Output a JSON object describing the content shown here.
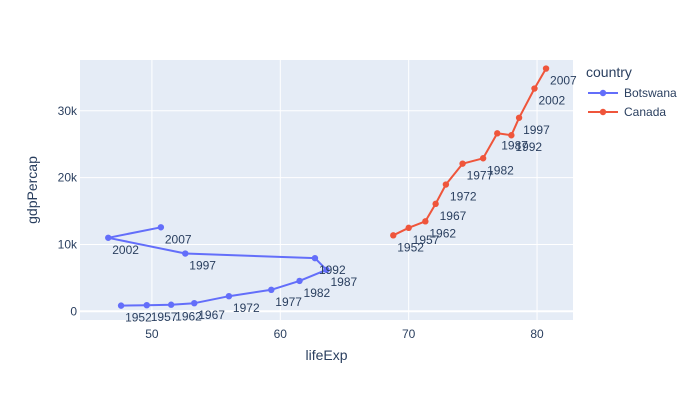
{
  "chart_data": {
    "type": "line",
    "title": "",
    "xlabel": "lifeExp",
    "ylabel": "gdpPercap",
    "xlim": [
      44.4,
      82.8
    ],
    "ylim": [
      -1300,
      37600
    ],
    "xticks": [
      50,
      60,
      70,
      80
    ],
    "yticks": [
      0,
      10000,
      20000,
      30000
    ],
    "ytick_labels": [
      "0",
      "10k",
      "20k",
      "30k"
    ],
    "grid": true,
    "legend": {
      "title": "country",
      "placement": "top-right"
    },
    "series": [
      {
        "name": "Botswana",
        "color": "#636efa",
        "points": [
          {
            "x": 47.6,
            "y": 851,
            "label": "1952"
          },
          {
            "x": 49.6,
            "y": 918,
            "label": "1957"
          },
          {
            "x": 51.5,
            "y": 984,
            "label": "1962"
          },
          {
            "x": 53.3,
            "y": 1215,
            "label": "1967"
          },
          {
            "x": 56.0,
            "y": 2264,
            "label": "1972"
          },
          {
            "x": 59.3,
            "y": 3215,
            "label": "1977"
          },
          {
            "x": 61.5,
            "y": 4551,
            "label": "1982"
          },
          {
            "x": 63.6,
            "y": 6206,
            "label": "1987"
          },
          {
            "x": 62.7,
            "y": 7954,
            "label": "1992"
          },
          {
            "x": 52.6,
            "y": 8647,
            "label": "1997"
          },
          {
            "x": 46.6,
            "y": 11003,
            "label": "2002"
          },
          {
            "x": 50.7,
            "y": 12570,
            "label": "2007"
          }
        ]
      },
      {
        "name": "Canada",
        "color": "#ef553b",
        "points": [
          {
            "x": 68.8,
            "y": 11367,
            "label": "1952"
          },
          {
            "x": 70.0,
            "y": 12490,
            "label": "1957"
          },
          {
            "x": 71.3,
            "y": 13462,
            "label": "1962"
          },
          {
            "x": 72.1,
            "y": 16077,
            "label": "1967"
          },
          {
            "x": 72.9,
            "y": 18971,
            "label": "1972"
          },
          {
            "x": 74.2,
            "y": 22091,
            "label": "1977"
          },
          {
            "x": 75.8,
            "y": 22899,
            "label": "1982"
          },
          {
            "x": 76.9,
            "y": 26627,
            "label": "1987"
          },
          {
            "x": 78.0,
            "y": 26343,
            "label": "1992"
          },
          {
            "x": 78.6,
            "y": 28955,
            "label": "1997"
          },
          {
            "x": 79.8,
            "y": 33329,
            "label": "2002"
          },
          {
            "x": 80.7,
            "y": 36319,
            "label": "2007"
          }
        ]
      }
    ]
  }
}
